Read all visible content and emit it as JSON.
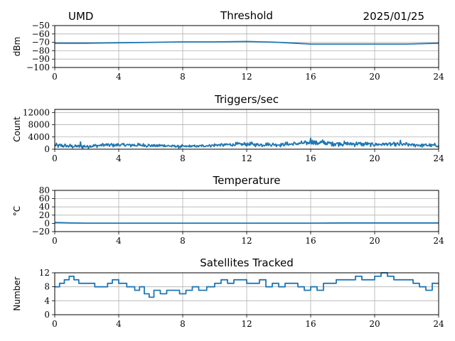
{
  "header": {
    "station": "UMD",
    "date": "2025/01/25"
  },
  "colors": {
    "series": "#1f77b4",
    "grid": "#b0b0b0",
    "axis": "#000000"
  },
  "chart_data": [
    {
      "type": "line",
      "title": "Threshold",
      "ylabel": "dBm",
      "xlim": [
        0,
        24
      ],
      "ylim": [
        -100,
        -50
      ],
      "xticks": [
        0,
        4,
        8,
        12,
        16,
        20,
        24
      ],
      "yticks": [
        -100,
        -90,
        -80,
        -70,
        -60,
        -50
      ],
      "xtick_labels": [
        "0",
        "4",
        "8",
        "12",
        "16",
        "20",
        "24"
      ],
      "ytick_labels": [
        "−100",
        "−90",
        "−80",
        "−70",
        "−60",
        "−50"
      ],
      "grid": true,
      "series": [
        {
          "x": [
            0,
            2,
            4,
            6,
            8,
            10,
            12,
            13,
            14,
            15,
            16,
            18,
            20,
            22,
            24
          ],
          "y": [
            -71,
            -71,
            -70.5,
            -70,
            -69.5,
            -69.5,
            -69,
            -69.5,
            -70,
            -71,
            -72,
            -72,
            -72,
            -72,
            -71
          ]
        }
      ]
    },
    {
      "type": "line",
      "title": "Triggers/sec",
      "ylabel": "Count",
      "xlim": [
        0,
        24
      ],
      "ylim": [
        0,
        13000
      ],
      "xticks": [
        0,
        4,
        8,
        12,
        16,
        20,
        24
      ],
      "yticks": [
        0,
        4000,
        8000,
        12000
      ],
      "xtick_labels": [
        "0",
        "4",
        "8",
        "12",
        "16",
        "20",
        "24"
      ],
      "ytick_labels": [
        "0",
        "4000",
        "8000",
        "12000"
      ],
      "grid": true,
      "series": [
        {
          "x": [
            0,
            1,
            2,
            3,
            4,
            5,
            6,
            7,
            8,
            9,
            10,
            11,
            12,
            13,
            14,
            15,
            16,
            17,
            18,
            19,
            20,
            21,
            22,
            23,
            24
          ],
          "y": [
            1200,
            1000,
            900,
            1300,
            1400,
            1300,
            1200,
            1100,
            900,
            1000,
            1300,
            1500,
            1600,
            1500,
            1500,
            1700,
            2200,
            2000,
            1800,
            1700,
            1600,
            1600,
            1500,
            1300,
            1200
          ],
          "spread": [
            1000,
            1100,
            800,
            900,
            900,
            900,
            800,
            800,
            600,
            700,
            900,
            900,
            1000,
            900,
            1000,
            1000,
            1400,
            1200,
            1100,
            1000,
            1000,
            1000,
            900,
            900,
            800
          ]
        }
      ]
    },
    {
      "type": "line",
      "title": "Temperature",
      "ylabel": "°C",
      "xlim": [
        0,
        24
      ],
      "ylim": [
        -20,
        80
      ],
      "xticks": [
        0,
        4,
        8,
        12,
        16,
        20,
        24
      ],
      "yticks": [
        -20,
        0,
        20,
        40,
        60,
        80
      ],
      "xtick_labels": [
        "0",
        "4",
        "8",
        "12",
        "16",
        "20",
        "24"
      ],
      "ytick_labels": [
        "−20",
        "0",
        "20",
        "40",
        "60",
        "80"
      ],
      "grid": true,
      "series": [
        {
          "x": [
            0,
            1,
            2,
            4,
            8,
            12,
            16,
            18,
            20,
            24
          ],
          "y": [
            2,
            1,
            0.5,
            0.5,
            0.5,
            0.5,
            0.5,
            1,
            1,
            1
          ]
        }
      ]
    },
    {
      "type": "line",
      "title": "Satellites Tracked",
      "ylabel": "Number",
      "xlim": [
        0,
        24
      ],
      "ylim": [
        0,
        12
      ],
      "xticks": [
        0,
        4,
        8,
        12,
        16,
        20,
        24
      ],
      "yticks": [
        0,
        4,
        8,
        12
      ],
      "xtick_labels": [
        "0",
        "4",
        "8",
        "12",
        "16",
        "20",
        "24"
      ],
      "ytick_labels": [
        "0",
        "4",
        "8",
        "12"
      ],
      "grid": true,
      "series": [
        {
          "x": [
            0,
            0.3,
            0.6,
            0.9,
            1.2,
            1.5,
            2,
            2.5,
            3,
            3.3,
            3.6,
            4,
            4.5,
            5,
            5.3,
            5.6,
            5.9,
            6.2,
            6.6,
            7,
            7.4,
            7.8,
            8.2,
            8.6,
            9,
            9.5,
            10,
            10.4,
            10.8,
            11.2,
            11.6,
            12,
            12.4,
            12.8,
            13.2,
            13.6,
            14,
            14.4,
            14.8,
            15.2,
            15.6,
            16,
            16.4,
            16.8,
            17.2,
            17.6,
            18,
            18.4,
            18.8,
            19.2,
            19.6,
            20,
            20.4,
            20.8,
            21.2,
            21.6,
            22,
            22.4,
            22.8,
            23.2,
            23.6,
            24
          ],
          "y": [
            8,
            9,
            10,
            11,
            10,
            9,
            9,
            8,
            8,
            9,
            10,
            9,
            8,
            7,
            8,
            6,
            5,
            7,
            6,
            7,
            7,
            6,
            7,
            8,
            7,
            8,
            9,
            10,
            9,
            10,
            10,
            9,
            9,
            10,
            8,
            9,
            8,
            9,
            9,
            8,
            7,
            8,
            7,
            9,
            9,
            10,
            10,
            10,
            11,
            10,
            10,
            11,
            12,
            11,
            10,
            10,
            10,
            9,
            8,
            7,
            9,
            9
          ]
        }
      ]
    }
  ]
}
